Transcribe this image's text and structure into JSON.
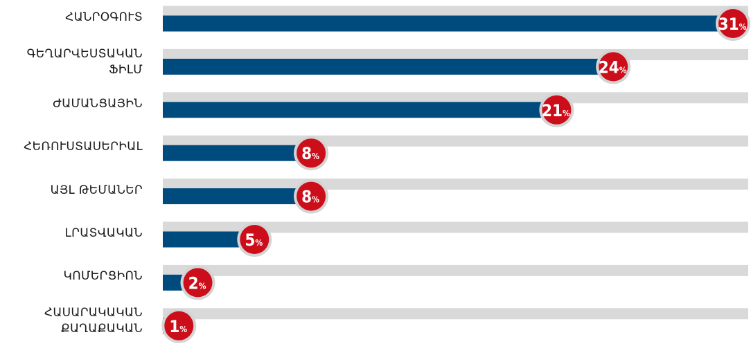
{
  "chart_data": {
    "type": "bar",
    "orientation": "horizontal",
    "categories": [
      "ՀԱՆՐՕԳՈՒՏ",
      "ԳԵՂԱՐՎԵՍՏԱԿԱՆ\nՖԻԼՄ",
      "ԺԱՄԱՆՑԱՅԻՆ",
      "ՀԵՌՈՒՍՏԱՍԵՐԻԱԼ",
      "ԱՅԼ ԹԵՄԱՆԵՐ",
      "ԼՐԱՏՎԱԿԱՆ",
      "ԿՈՄԵՐՑԻՈՆ",
      "ՀԱՍԱՐԱԿԱԿԱՆ\nՔԱՂԱՔԱԿԱՆ"
    ],
    "values": [
      31,
      24,
      21,
      8,
      8,
      5,
      2,
      1
    ],
    "value_suffix": "%",
    "xlim": [
      0,
      31
    ],
    "grid": false,
    "colors": {
      "bar": "#004b7d",
      "track": "#d9d9d9",
      "badge": "#cc0e1a",
      "badge_ring": "#d4d4d4",
      "badge_text": "#ffffff"
    }
  }
}
